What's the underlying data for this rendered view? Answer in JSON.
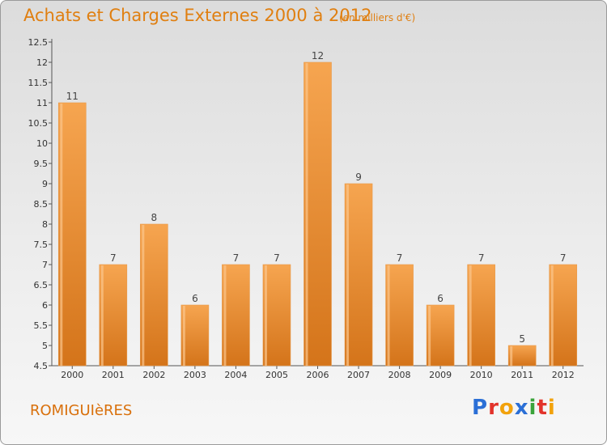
{
  "title": "Achats et Charges Externes 2000 à 2012",
  "subtitle": "(en milliers d'€)",
  "commune": "ROMIGUIèRES",
  "brand": {
    "text": "Proxiti",
    "colors": [
      "#2b6fd6",
      "#e2332b",
      "#f2a20c",
      "#2b6fd6",
      "#3aa33a",
      "#e2332b",
      "#f2a20c"
    ]
  },
  "colors": {
    "bar_light": "#f6a550",
    "bar_dark": "#d4741a",
    "title": "#e07f10"
  },
  "chart_data": {
    "type": "bar",
    "title": "Achats et Charges Externes 2000 à 2012",
    "subtitle": "(en milliers d'€)",
    "categories": [
      "2000",
      "2001",
      "2002",
      "2003",
      "2004",
      "2005",
      "2006",
      "2007",
      "2008",
      "2009",
      "2010",
      "2011",
      "2012"
    ],
    "values": [
      11,
      7,
      8,
      6,
      7,
      7,
      12,
      9,
      7,
      6,
      7,
      5,
      7
    ],
    "ylim": [
      4.5,
      12.5
    ],
    "yticks": [
      "4.5",
      "5",
      "5.5",
      "6",
      "6.5",
      "7",
      "7.5",
      "8",
      "8.5",
      "9",
      "9.5",
      "10",
      "10.5",
      "11",
      "11.5",
      "12",
      "12.5"
    ],
    "grid": false,
    "xlabel": "",
    "ylabel": ""
  }
}
